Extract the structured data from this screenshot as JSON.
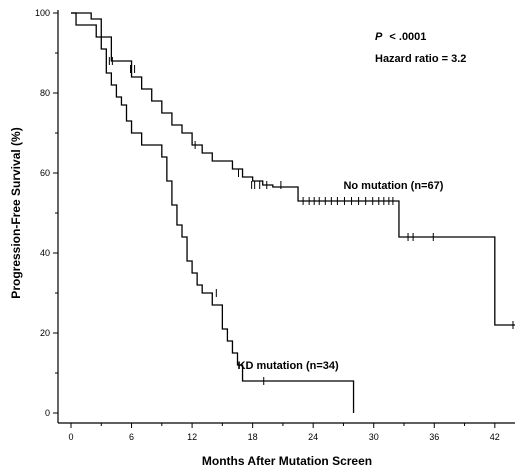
{
  "chart_data": {
    "type": "line",
    "step": true,
    "xlabel": "Months After Mutation Screen",
    "ylabel": "Progression-Free Survival (%)",
    "xlim": [
      0,
      44
    ],
    "ylim": [
      0,
      100
    ],
    "xticks": [
      0,
      6,
      12,
      18,
      24,
      30,
      36,
      42
    ],
    "yticks": [
      0,
      20,
      40,
      60,
      80,
      100
    ],
    "annotations": {
      "p_label": "P",
      "p_value": "< .0001",
      "hazard": "Hazard ratio = 3.2"
    },
    "series": [
      {
        "name": "No mutation (n=67)",
        "label_anchor": [
          27,
          56
        ],
        "x": [
          0,
          2,
          3,
          4,
          6,
          7,
          8,
          9,
          10,
          11,
          12,
          13,
          14,
          16,
          17,
          18,
          19,
          20,
          22.5,
          32.5,
          42
        ],
        "y": [
          100,
          98.5,
          94,
          88,
          84,
          81,
          78,
          75,
          72,
          70,
          67,
          65,
          63,
          61,
          59,
          58,
          57,
          56.5,
          53,
          44,
          22
        ],
        "end_x": 44,
        "censored": [
          [
            3.8,
            88
          ],
          [
            4.1,
            88
          ],
          [
            5.9,
            86
          ],
          [
            6.3,
            86
          ],
          [
            12.3,
            67
          ],
          [
            16.6,
            60
          ],
          [
            17.9,
            57
          ],
          [
            18.2,
            57
          ],
          [
            18.7,
            57
          ],
          [
            19.4,
            57
          ],
          [
            20.8,
            57
          ],
          [
            23.0,
            53
          ],
          [
            23.6,
            53
          ],
          [
            24.1,
            53
          ],
          [
            24.6,
            53
          ],
          [
            25.2,
            53
          ],
          [
            25.8,
            53
          ],
          [
            26.4,
            53
          ],
          [
            27.1,
            53
          ],
          [
            27.8,
            53
          ],
          [
            28.5,
            53
          ],
          [
            29.2,
            53
          ],
          [
            29.9,
            53
          ],
          [
            30.5,
            53
          ],
          [
            31.0,
            53
          ],
          [
            31.5,
            53
          ],
          [
            31.9,
            53
          ],
          [
            33.4,
            44
          ],
          [
            33.9,
            44
          ],
          [
            35.9,
            44
          ],
          [
            43.8,
            22
          ]
        ]
      },
      {
        "name": "KD mutation (n=34)",
        "label_anchor": [
          16.5,
          11
        ],
        "x": [
          0,
          0.5,
          2.5,
          3,
          3.5,
          4,
          4.5,
          5,
          5.5,
          6,
          6.5,
          7,
          9,
          9.5,
          10,
          10.5,
          11,
          11.5,
          12,
          12.5,
          13,
          14,
          15,
          15.5,
          16,
          16.5,
          17,
          28
        ],
        "y": [
          100,
          97,
          94,
          91,
          85,
          82,
          79,
          77,
          73,
          70,
          70,
          67,
          64,
          58,
          52,
          47,
          44,
          38,
          35,
          32,
          30,
          27,
          21,
          18,
          15,
          12,
          8,
          0
        ],
        "end_x": 28,
        "censored": [
          [
            14.4,
            30
          ],
          [
            19.1,
            8
          ]
        ]
      }
    ]
  }
}
